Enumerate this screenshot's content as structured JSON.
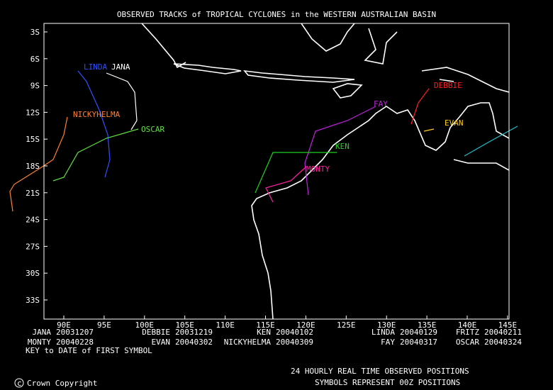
{
  "title": "OBSERVED TRACKS of TROPICAL CYCLONES in the WESTERN AUSTRALIAN BASIN",
  "lat_labels": [
    "3S",
    "6S",
    "9S",
    "12S",
    "15S",
    "18S",
    "21S",
    "24S",
    "27S",
    "30S",
    "33S"
  ],
  "lon_labels": [
    "90E",
    "95E",
    "100E",
    "105E",
    "110E",
    "115E",
    "120E",
    "125E",
    "130E",
    "135E",
    "140E",
    "145E"
  ],
  "storms": [
    {
      "name": "JANA",
      "date": "20031207"
    },
    {
      "name": "DEBBIE",
      "date": "20031219"
    },
    {
      "name": "KEN",
      "date": "20040102"
    },
    {
      "name": "LINDA",
      "date": "20040129"
    },
    {
      "name": "FRITZ",
      "date": "20040211"
    },
    {
      "name": "MONTY",
      "date": "20040228"
    },
    {
      "name": "EVAN",
      "date": "20040302"
    },
    {
      "name": "NICKYHELMA",
      "date": "20040309"
    },
    {
      "name": "FAY",
      "date": "20040317"
    },
    {
      "name": "OSCAR",
      "date": "20040324"
    }
  ],
  "key_note": "KEY to DATE of FIRST SYMBOL",
  "footer": {
    "line1": "24 HOURLY REAL TIME OBSERVED POSITIONS",
    "line2": "SYMBOLS REPRESENT 00Z POSITIONS"
  },
  "copyright": "Crown Copyright"
}
